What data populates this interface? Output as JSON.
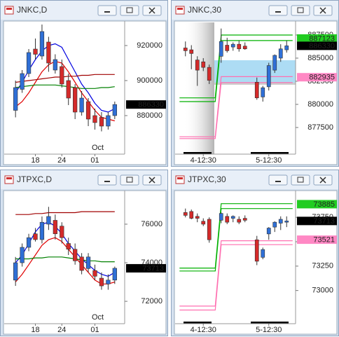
{
  "chart_data": [
    {
      "type": "candlestick",
      "title": "JNKC,D",
      "ylim": [
        858000,
        933200
      ],
      "yticks": [
        920000,
        900000,
        880000
      ],
      "categories": [
        null,
        null,
        null,
        "18",
        null,
        null,
        null,
        "24",
        null,
        null,
        null,
        null,
        "01",
        null,
        null,
        null
      ],
      "annotation": "Oct",
      "open": [
        883000,
        895000,
        904000,
        918000,
        914000,
        922000,
        906000,
        908000,
        900000,
        896000,
        882000,
        888000,
        880000,
        879000,
        874000,
        880000
      ],
      "high": [
        900000,
        906000,
        918000,
        924000,
        932000,
        925000,
        915000,
        912000,
        904000,
        898000,
        894000,
        890000,
        884000,
        882000,
        882000,
        888000
      ],
      "low": [
        879000,
        893000,
        902000,
        912000,
        912000,
        905000,
        904000,
        896000,
        886000,
        878000,
        880000,
        874000,
        872000,
        871000,
        872000,
        878000
      ],
      "close": [
        896000,
        904000,
        916000,
        915000,
        928000,
        910000,
        912000,
        898000,
        890000,
        882000,
        890000,
        878000,
        876000,
        874000,
        880000,
        886330
      ],
      "up_color": "#2f6fd6",
      "down_color": "#d42a2a",
      "lines": [
        {
          "color": "#0000e0",
          "values": [
            893000,
            899000,
            906000,
            912000,
            917000,
            920000,
            921000,
            919000,
            912000,
            905000,
            898000,
            893000,
            887000,
            883000,
            882000,
            884000
          ]
        },
        {
          "color": "#e00000",
          "values": [
            885000,
            888000,
            893000,
            899000,
            905000,
            909000,
            911000,
            910000,
            905000,
            899000,
            893000,
            888000,
            883000,
            879000,
            878000,
            877000
          ]
        },
        {
          "color": "#a00000",
          "values": [
            899000,
            899500,
            900000,
            900500,
            901000,
            901500,
            902000,
            902000,
            902500,
            902500,
            903000,
            903000,
            903500,
            903500,
            903500,
            903500
          ]
        },
        {
          "color": "#008000",
          "values": [
            896000,
            896500,
            897000,
            897500,
            897500,
            897500,
            897500,
            897000,
            896500,
            896000,
            895500,
            895500,
            895500,
            896000,
            896000,
            896500
          ]
        }
      ],
      "price_tags": [
        {
          "value": 886330,
          "color": "#000000"
        }
      ]
    },
    {
      "type": "candlestick",
      "title": "JNKC,30",
      "ylim": [
        874620,
        888860
      ],
      "yticks": [
        887500,
        885000,
        882500,
        880000,
        877500
      ],
      "categories": [
        null,
        null,
        null,
        null,
        "4-12:30",
        null,
        null,
        null,
        null,
        null,
        null,
        null,
        null,
        null,
        null,
        "5-12:30",
        null,
        null,
        null,
        null
      ],
      "open": [
        null,
        886100,
        885900,
        884800,
        884600,
        884000,
        null,
        885200,
        886400,
        886200,
        886500,
        886300,
        null,
        882400,
        880800,
        881900,
        883700,
        885000,
        885900,
        null
      ],
      "high": [
        null,
        886800,
        886400,
        885200,
        885000,
        884300,
        null,
        888200,
        887200,
        886700,
        886900,
        886700,
        null,
        882900,
        882000,
        884500,
        885400,
        886500,
        886900,
        null
      ],
      "low": [
        null,
        885200,
        883800,
        882000,
        883600,
        882200,
        null,
        884500,
        885600,
        885800,
        885700,
        885900,
        null,
        880500,
        880300,
        881500,
        883400,
        884600,
        885600,
        null
      ],
      "close": [
        null,
        885800,
        885500,
        883700,
        884000,
        882600,
        null,
        886800,
        885800,
        886500,
        886000,
        886000,
        null,
        880700,
        881800,
        884200,
        885300,
        886000,
        886330,
        null
      ],
      "up_color": "#2f6fd6",
      "down_color": "#d42a2a",
      "lines": [
        {
          "color": "#00b000",
          "values": [
            880700,
            880700,
            880700,
            880700,
            880700,
            880700,
            880700,
            887500,
            887500,
            887500,
            887500,
            887500,
            887500,
            887500,
            887500,
            887500,
            887500,
            887500,
            887500,
            887500
          ]
        },
        {
          "color": "#00b000",
          "values": [
            880300,
            880300,
            880300,
            880300,
            880300,
            880300,
            880300,
            886900,
            886900,
            886900,
            886900,
            886900,
            886900,
            886900,
            886900,
            886900,
            886900,
            886900,
            886900,
            886900
          ]
        },
        {
          "color": "#ff6fb0",
          "values": [
            876500,
            876500,
            876500,
            876500,
            876500,
            876500,
            876500,
            883000,
            883000,
            883000,
            883000,
            883000,
            883000,
            883000,
            883000,
            883000,
            883000,
            883000,
            883000,
            883000
          ]
        },
        {
          "color": "#ff6fb0",
          "values": [
            876300,
            876300,
            876300,
            876300,
            876300,
            876300,
            876300,
            882350,
            882350,
            882350,
            882350,
            882350,
            882350,
            882350,
            882350,
            882350,
            882350,
            882350,
            882350,
            882350
          ]
        }
      ],
      "price_tags": [
        {
          "value": 887123,
          "color": "#22cc22"
        },
        {
          "value": 886330,
          "color": "#000000"
        },
        {
          "value": 882935,
          "color": "#ff88c4"
        }
      ]
    },
    {
      "type": "candlestick",
      "title": "JTPXC,D",
      "ylim": [
        70840,
        77670
      ],
      "yticks": [
        76000,
        74000,
        72000
      ],
      "categories": [
        null,
        null,
        null,
        "18",
        null,
        null,
        null,
        "24",
        null,
        null,
        null,
        null,
        "01",
        null,
        null,
        null
      ],
      "annotation": "Oct",
      "open": [
        73100,
        74000,
        74800,
        75500,
        75200,
        76000,
        76200,
        75900,
        75000,
        74700,
        74300,
        73700,
        73600,
        73200,
        72900,
        73100
      ],
      "high": [
        74300,
        75000,
        75500,
        75800,
        76400,
        76900,
        76500,
        76100,
        75300,
        75000,
        74500,
        74500,
        73900,
        73500,
        73400,
        73800
      ],
      "low": [
        72800,
        73800,
        74600,
        75100,
        75000,
        75700,
        75200,
        75000,
        74400,
        73900,
        73400,
        73500,
        73100,
        72600,
        72600,
        72900
      ],
      "close": [
        74000,
        74800,
        75300,
        75200,
        76100,
        76400,
        75500,
        75300,
        74700,
        74100,
        73600,
        74300,
        73300,
        72800,
        73100,
        73713
      ],
      "up_color": "#2f6fd6",
      "down_color": "#d42a2a",
      "lines": [
        {
          "color": "#0000e0",
          "values": [
            74000,
            74400,
            75000,
            75600,
            76000,
            76100,
            75900,
            75500,
            75000,
            74600,
            74200,
            73900,
            73600,
            73400,
            73300,
            73500
          ]
        },
        {
          "color": "#e00000",
          "values": [
            73000,
            73400,
            73900,
            74400,
            74900,
            75200,
            75300,
            75100,
            74700,
            74300,
            73900,
            73500,
            73100,
            72900,
            72900,
            73000
          ]
        },
        {
          "color": "#a00000",
          "values": [
            76500,
            76500,
            76500,
            76550,
            76550,
            76600,
            76600,
            76600,
            76600,
            76600,
            76650,
            76650,
            76650,
            76650,
            76650,
            76650
          ]
        },
        {
          "color": "#008000",
          "values": [
            74200,
            74200,
            74200,
            74250,
            74250,
            74300,
            74300,
            74300,
            74250,
            74200,
            74150,
            74100,
            74100,
            74050,
            74050,
            74050
          ]
        }
      ],
      "price_tags": [
        {
          "value": 73713,
          "color": "#000000"
        }
      ]
    },
    {
      "type": "candlestick",
      "title": "JTPXC,30",
      "ylim": [
        72660,
        74010
      ],
      "yticks": [
        73750,
        73500,
        73250,
        73000
      ],
      "categories": [
        null,
        null,
        null,
        null,
        "4-12:30",
        null,
        null,
        null,
        null,
        null,
        null,
        null,
        null,
        null,
        null,
        "5-12:30",
        null,
        null,
        null,
        null
      ],
      "open": [
        null,
        73800,
        73810,
        73760,
        73710,
        73730,
        null,
        73720,
        73760,
        73740,
        73730,
        73740,
        null,
        73520,
        73340,
        73580,
        73650,
        73690,
        73700,
        null
      ],
      "high": [
        null,
        73840,
        73830,
        73790,
        73740,
        73750,
        null,
        73800,
        73790,
        73770,
        73760,
        73770,
        null,
        73560,
        73440,
        73650,
        73710,
        73760,
        73760,
        null
      ],
      "low": [
        null,
        73750,
        73730,
        73700,
        73660,
        73490,
        null,
        73690,
        73680,
        73700,
        73680,
        73700,
        null,
        73260,
        73320,
        73520,
        73600,
        73620,
        73650,
        null
      ],
      "close": [
        null,
        73770,
        73740,
        73740,
        73680,
        73520,
        null,
        73790,
        73700,
        73760,
        73700,
        73720,
        null,
        73300,
        73420,
        73640,
        73700,
        73730,
        73713,
        null
      ],
      "up_color": "#2f6fd6",
      "down_color": "#d42a2a",
      "lines": [
        {
          "color": "#00b000",
          "values": [
            73230,
            73230,
            73230,
            73230,
            73230,
            73230,
            73230,
            73890,
            73890,
            73890,
            73890,
            73890,
            73890,
            73890,
            73890,
            73890,
            73890,
            73890,
            73890,
            73890
          ]
        },
        {
          "color": "#00b000",
          "values": [
            73200,
            73200,
            73200,
            73200,
            73200,
            73200,
            73200,
            73840,
            73840,
            73840,
            73840,
            73840,
            73840,
            73840,
            73840,
            73840,
            73840,
            73840,
            73840,
            73840
          ]
        },
        {
          "color": "#ff6fb0",
          "values": [
            72840,
            72840,
            72840,
            72840,
            72840,
            72840,
            72840,
            73510,
            73510,
            73510,
            73510,
            73510,
            73510,
            73510,
            73510,
            73510,
            73510,
            73510,
            73510,
            73510
          ]
        },
        {
          "color": "#ff6fb0",
          "values": [
            72800,
            72800,
            72800,
            72800,
            72800,
            72800,
            72800,
            73470,
            73470,
            73470,
            73470,
            73470,
            73470,
            73470,
            73470,
            73470,
            73470,
            73470,
            73470,
            73470
          ]
        }
      ],
      "price_tags": [
        {
          "value": 73885,
          "color": "#22cc22"
        },
        {
          "value": 73713,
          "color": "#000000"
        },
        {
          "value": 73521,
          "color": "#ff88c4"
        }
      ]
    }
  ]
}
